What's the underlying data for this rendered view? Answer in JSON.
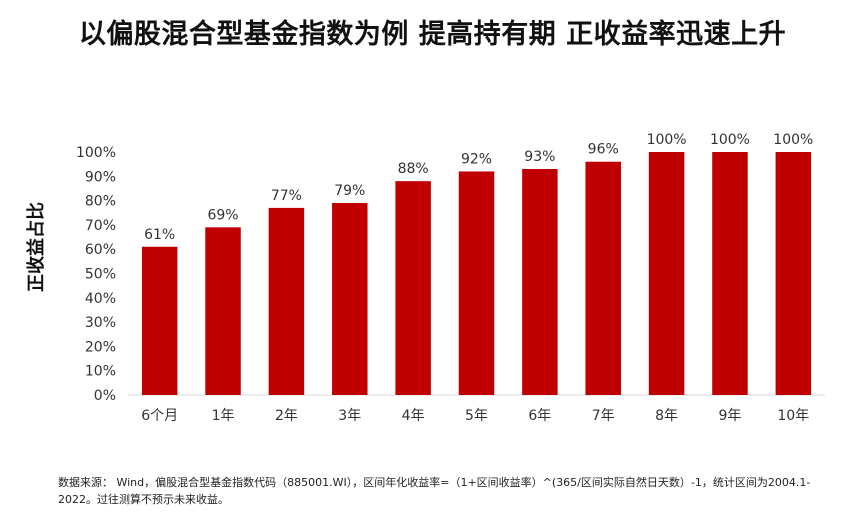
{
  "title": "以偏股混合型基金指数为例 提高持有期 正收益率迅速上升",
  "footnote": "数据来源： Wind，偏股混合型基金指数代码（885001.WI），区间年化收益率=（1+区间收益率）^(365/区间实际自然日天数）-1，统计区间为2004.1-2022。过往测算不预示未来收益。",
  "colors": {
    "bar": "#c00000",
    "axis": "#d9d9d9"
  },
  "chart_data": {
    "type": "bar",
    "title": "以偏股混合型基金指数为例 提高持有期 正收益率迅速上升",
    "xlabel": "",
    "ylabel": "正收益占比",
    "categories": [
      "6个月",
      "1年",
      "2年",
      "3年",
      "4年",
      "5年",
      "6年",
      "7年",
      "8年",
      "9年",
      "10年"
    ],
    "values": [
      61,
      69,
      77,
      79,
      88,
      92,
      93,
      96,
      100,
      100,
      100
    ],
    "value_labels": [
      "61%",
      "69%",
      "77%",
      "79%",
      "88%",
      "92%",
      "93%",
      "96%",
      "100%",
      "100%",
      "100%"
    ],
    "ylim": [
      0,
      100
    ],
    "yticks": [
      "0%",
      "10%",
      "20%",
      "30%",
      "40%",
      "50%",
      "60%",
      "70%",
      "80%",
      "90%",
      "100%"
    ],
    "grid": false,
    "legend": "none"
  }
}
